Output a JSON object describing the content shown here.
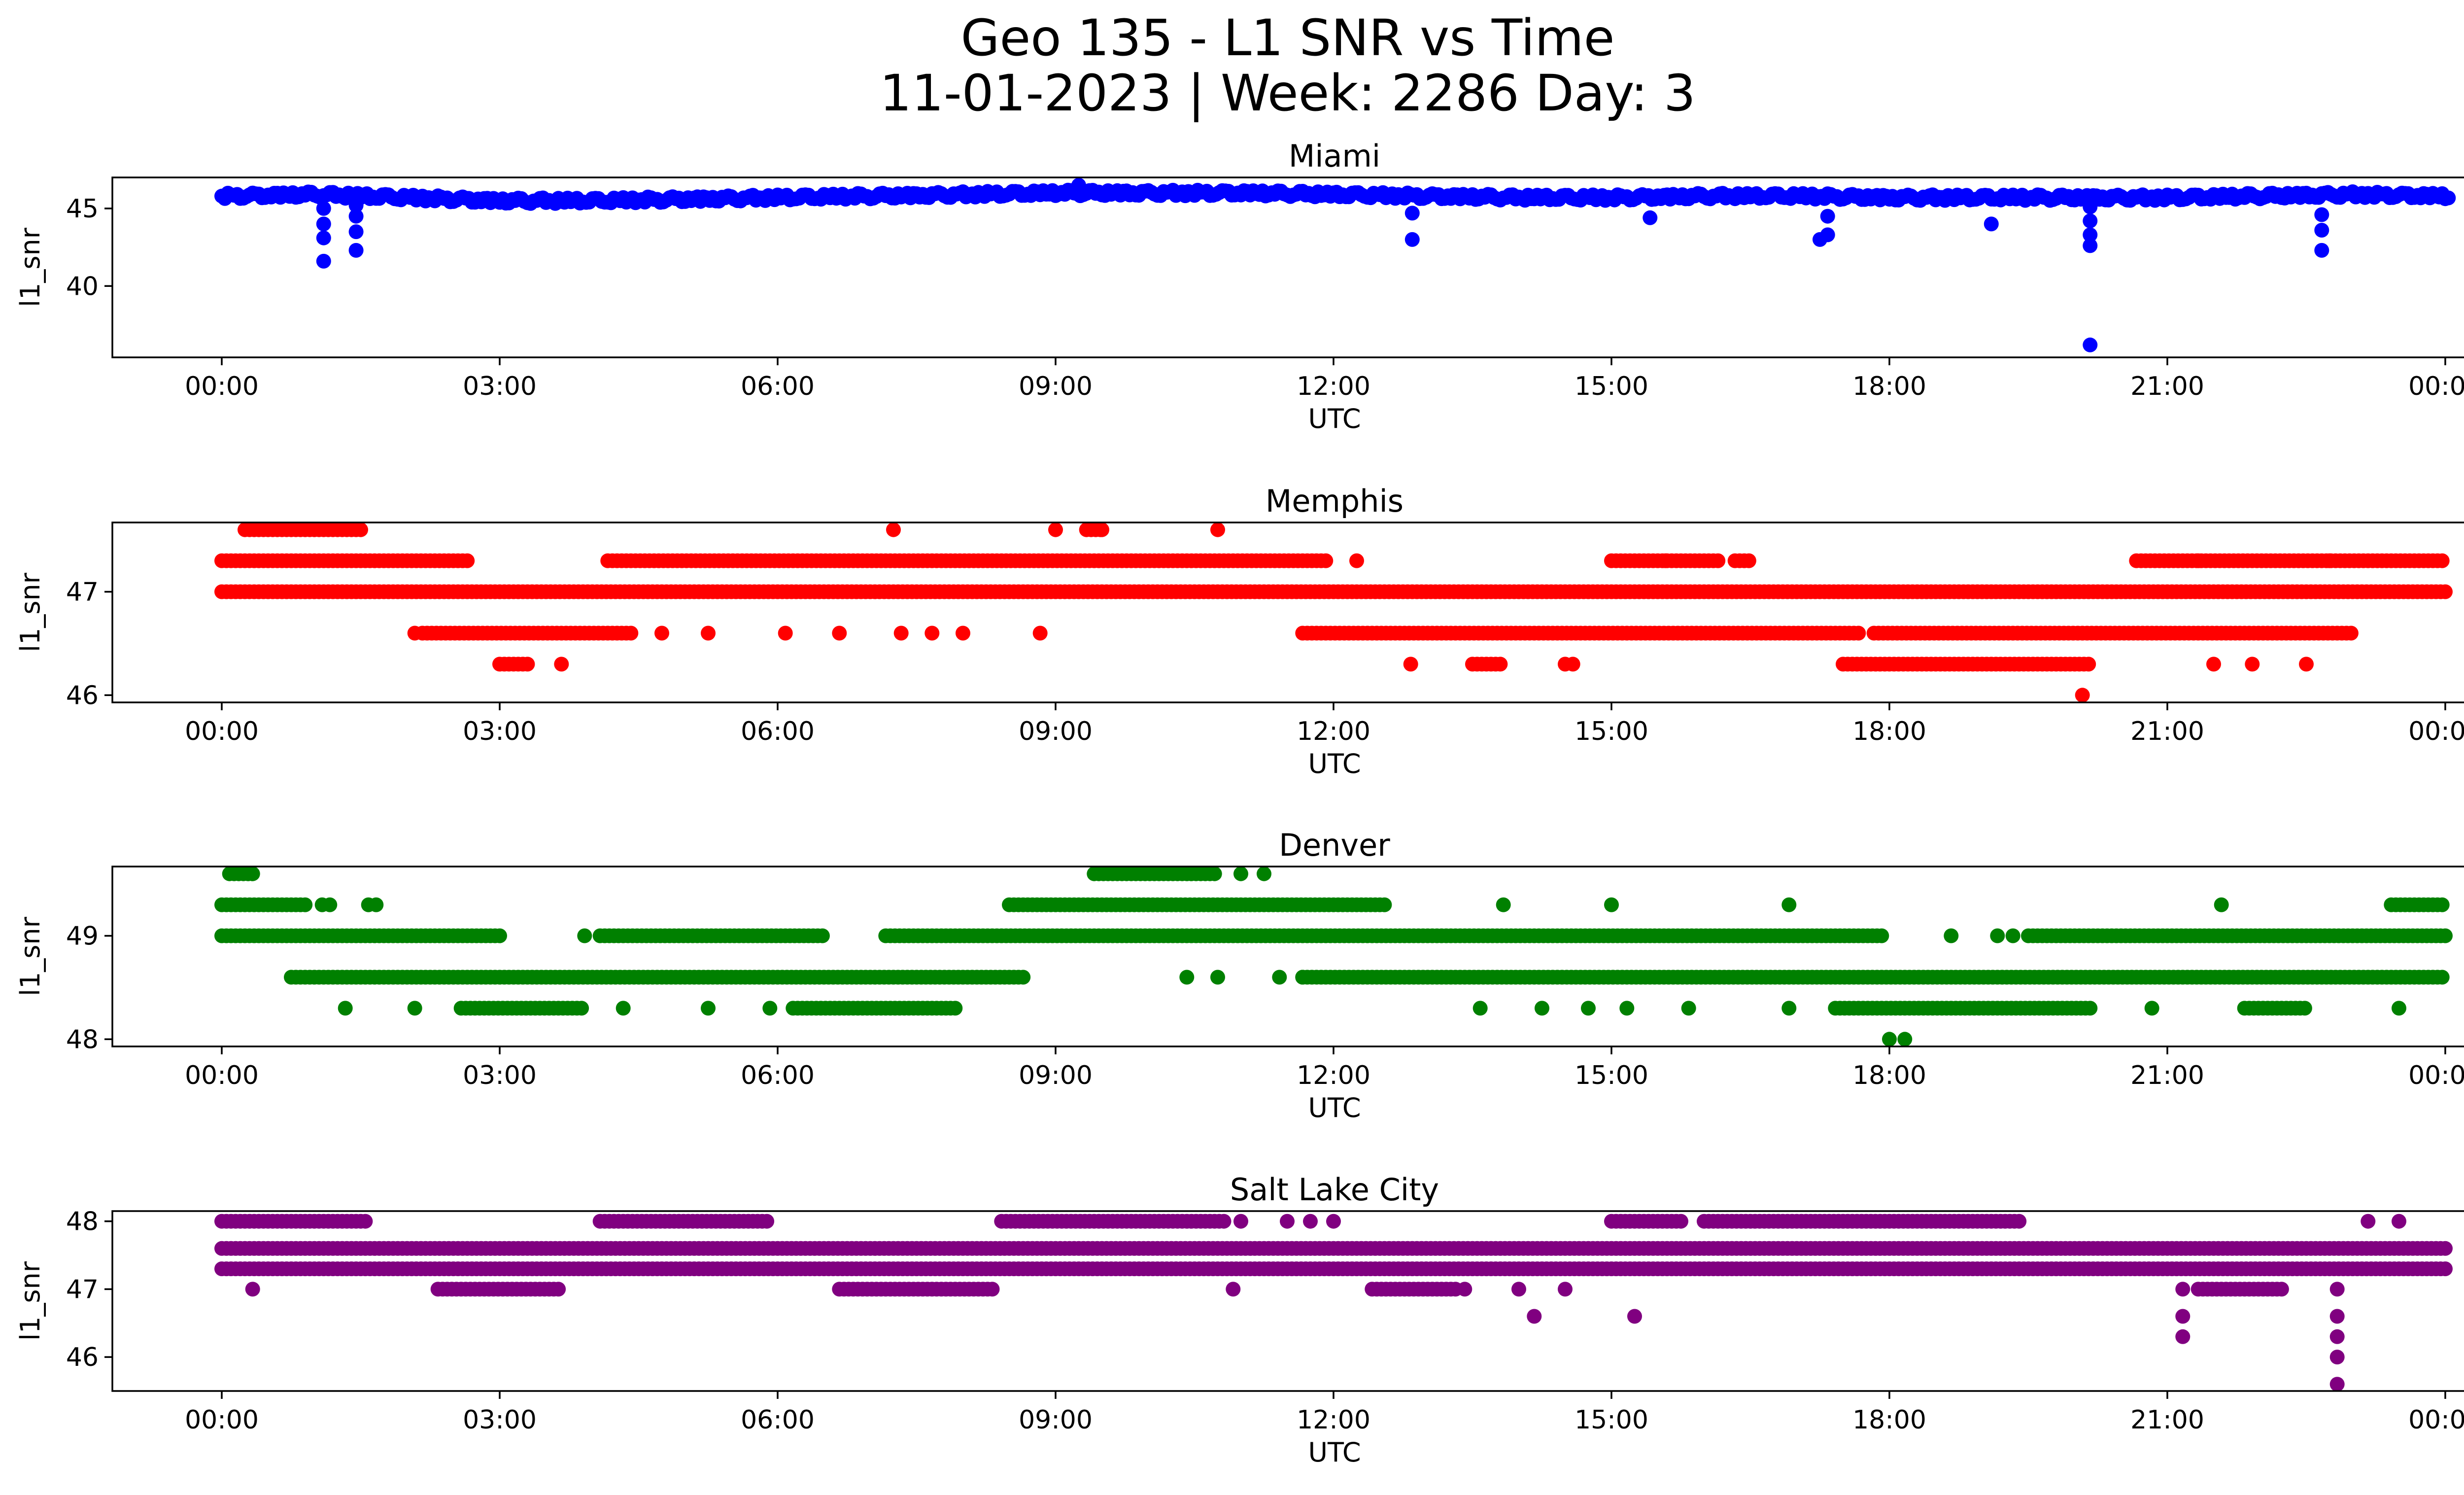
{
  "figure": {
    "title_line1": "Geo 135 - L1 SNR vs Time",
    "title_line2": "11-01-2023 | Week: 2286 Day: 3"
  },
  "chart_data": [
    {
      "type": "scatter",
      "title": "Miami",
      "xlabel": "UTC",
      "ylabel": "l1_snr",
      "color": "#0000ff",
      "xlim": [
        "2023-11-01T00:00",
        "2023-11-02T00:00"
      ],
      "ylim": [
        35.4,
        47.0
      ],
      "yticks": [
        40,
        45
      ],
      "xtick_labels": [
        "00:00",
        "03:00",
        "06:00",
        "09:00",
        "12:00",
        "15:00",
        "18:00",
        "21:00",
        "00:00"
      ],
      "baseline": [
        [
          "00:00",
          45.8
        ],
        [
          "01:00",
          45.9
        ],
        [
          "02:00",
          45.7
        ],
        [
          "03:00",
          45.5
        ],
        [
          "04:00",
          45.5
        ],
        [
          "05:00",
          45.6
        ],
        [
          "06:00",
          45.7
        ],
        [
          "07:00",
          45.8
        ],
        [
          "08:00",
          45.9
        ],
        [
          "09:00",
          46.0
        ],
        [
          "10:00",
          46.0
        ],
        [
          "11:00",
          46.0
        ],
        [
          "12:00",
          45.9
        ],
        [
          "13:00",
          45.8
        ],
        [
          "14:00",
          45.7
        ],
        [
          "15:00",
          45.7
        ],
        [
          "16:00",
          45.8
        ],
        [
          "17:00",
          45.8
        ],
        [
          "18:00",
          45.7
        ],
        [
          "19:00",
          45.7
        ],
        [
          "20:00",
          45.7
        ],
        [
          "21:00",
          45.7
        ],
        [
          "22:00",
          45.8
        ],
        [
          "23:00",
          45.9
        ],
        [
          "24:00",
          45.8
        ]
      ],
      "outliers": [
        [
          "01:06",
          41.6
        ],
        [
          "01:06",
          43.1
        ],
        [
          "01:06",
          44.0
        ],
        [
          "01:06",
          45.0
        ],
        [
          "01:27",
          42.3
        ],
        [
          "01:27",
          43.5
        ],
        [
          "01:27",
          44.5
        ],
        [
          "01:27",
          45.2
        ],
        [
          "09:15",
          46.5
        ],
        [
          "12:51",
          43.0
        ],
        [
          "12:51",
          44.7
        ],
        [
          "15:25",
          44.4
        ],
        [
          "17:15",
          43.0
        ],
        [
          "17:20",
          43.3
        ],
        [
          "17:20",
          44.5
        ],
        [
          "19:06",
          44.0
        ],
        [
          "20:10",
          36.2
        ],
        [
          "20:10",
          42.6
        ],
        [
          "20:10",
          43.3
        ],
        [
          "20:10",
          44.2
        ],
        [
          "20:10",
          45.1
        ],
        [
          "22:40",
          42.3
        ],
        [
          "22:40",
          43.6
        ],
        [
          "22:40",
          44.6
        ]
      ]
    },
    {
      "type": "scatter",
      "title": "Memphis",
      "xlabel": "UTC",
      "ylabel": "l1_snr",
      "color": "#ff0000",
      "xlim": [
        "2023-11-01T00:00",
        "2023-11-02T00:00"
      ],
      "ylim": [
        45.93,
        47.67
      ],
      "yticks": [
        46,
        47
      ],
      "xtick_labels": [
        "00:00",
        "03:00",
        "06:00",
        "09:00",
        "12:00",
        "15:00",
        "18:00",
        "21:00",
        "00:00"
      ],
      "bands": [
        {
          "y": 47.0,
          "ranges": [
            [
              "00:00",
              "24:00"
            ]
          ]
        },
        {
          "y": 47.3,
          "ranges": [
            [
              "00:00",
              "02:40"
            ],
            [
              "04:10",
              "11:55"
            ],
            [
              "15:00",
              "16:10"
            ],
            [
              "16:20",
              "16:30"
            ],
            [
              "20:40",
              "24:00"
            ]
          ]
        },
        {
          "y": 47.6,
          "ranges": [
            [
              "00:15",
              "01:30"
            ],
            [
              "09:20",
              "09:30"
            ]
          ]
        },
        {
          "y": 46.6,
          "ranges": [
            [
              "02:10",
              "04:25"
            ],
            [
              "11:40",
              "17:40"
            ],
            [
              "17:50",
              "23:00"
            ]
          ]
        },
        {
          "y": 46.3,
          "ranges": [
            [
              "03:00",
              "03:20"
            ],
            [
              "13:30",
              "13:50"
            ],
            [
              "17:30",
              "20:10"
            ]
          ]
        }
      ],
      "points": [
        [
          "07:15",
          47.6
        ],
        [
          "09:00",
          47.6
        ],
        [
          "09:30",
          47.6
        ],
        [
          "10:45",
          47.6
        ],
        [
          "12:15",
          47.3
        ],
        [
          "15:35",
          47.3
        ],
        [
          "21:20",
          47.3
        ],
        [
          "22:45",
          47.3
        ],
        [
          "02:05",
          46.6
        ],
        [
          "04:45",
          46.6
        ],
        [
          "05:15",
          46.6
        ],
        [
          "06:05",
          46.6
        ],
        [
          "06:40",
          46.6
        ],
        [
          "07:20",
          46.6
        ],
        [
          "07:40",
          46.6
        ],
        [
          "08:00",
          46.6
        ],
        [
          "08:50",
          46.6
        ],
        [
          "03:40",
          46.3
        ],
        [
          "12:50",
          46.3
        ],
        [
          "14:30",
          46.3
        ],
        [
          "14:35",
          46.3
        ],
        [
          "21:30",
          46.3
        ],
        [
          "21:55",
          46.3
        ],
        [
          "22:30",
          46.3
        ],
        [
          "20:05",
          46.0
        ]
      ]
    },
    {
      "type": "scatter",
      "title": "Denver",
      "xlabel": "UTC",
      "ylabel": "l1_snr",
      "color": "#008000",
      "xlim": [
        "2023-11-01T00:00",
        "2023-11-02T00:00"
      ],
      "ylim": [
        47.93,
        49.67
      ],
      "yticks": [
        48,
        49
      ],
      "xtick_labels": [
        "00:00",
        "03:00",
        "06:00",
        "09:00",
        "12:00",
        "15:00",
        "18:00",
        "21:00",
        "00:00"
      ],
      "bands": [
        {
          "y": 49.0,
          "ranges": [
            [
              "00:00",
              "03:00"
            ],
            [
              "04:05",
              "06:30"
            ],
            [
              "07:10",
              "17:55"
            ],
            [
              "19:30",
              "24:00"
            ]
          ]
        },
        {
          "y": 49.3,
          "ranges": [
            [
              "00:00",
              "00:55"
            ],
            [
              "08:30",
              "12:35"
            ],
            [
              "23:25",
              "24:00"
            ]
          ]
        },
        {
          "y": 49.6,
          "ranges": [
            [
              "00:05",
              "00:20"
            ],
            [
              "09:25",
              "10:45"
            ]
          ]
        },
        {
          "y": 48.6,
          "ranges": [
            [
              "00:45",
              "08:40"
            ],
            [
              "11:40",
              "24:00"
            ]
          ]
        },
        {
          "y": 48.3,
          "ranges": [
            [
              "02:35",
              "03:55"
            ],
            [
              "06:10",
              "07:55"
            ],
            [
              "17:25",
              "20:10"
            ],
            [
              "21:50",
              "22:30"
            ]
          ]
        }
      ],
      "points": [
        [
          "01:05",
          49.3
        ],
        [
          "01:10",
          49.3
        ],
        [
          "01:35",
          49.3
        ],
        [
          "01:40",
          49.3
        ],
        [
          "13:50",
          49.3
        ],
        [
          "15:00",
          49.3
        ],
        [
          "16:55",
          49.3
        ],
        [
          "21:35",
          49.3
        ],
        [
          "03:55",
          49.0
        ],
        [
          "18:40",
          49.0
        ],
        [
          "19:10",
          49.0
        ],
        [
          "19:20",
          49.0
        ],
        [
          "11:00",
          49.6
        ],
        [
          "11:15",
          49.6
        ],
        [
          "10:25",
          48.6
        ],
        [
          "10:45",
          48.6
        ],
        [
          "11:25",
          48.6
        ],
        [
          "11:40",
          48.6
        ],
        [
          "01:20",
          48.3
        ],
        [
          "02:05",
          48.3
        ],
        [
          "04:20",
          48.3
        ],
        [
          "05:15",
          48.3
        ],
        [
          "05:55",
          48.3
        ],
        [
          "13:35",
          48.3
        ],
        [
          "14:15",
          48.3
        ],
        [
          "14:45",
          48.3
        ],
        [
          "15:10",
          48.3
        ],
        [
          "15:50",
          48.3
        ],
        [
          "16:55",
          48.3
        ],
        [
          "20:50",
          48.3
        ],
        [
          "23:30",
          48.3
        ],
        [
          "18:00",
          48.0
        ],
        [
          "18:10",
          48.0
        ]
      ]
    },
    {
      "type": "scatter",
      "title": "Salt Lake City",
      "xlabel": "UTC",
      "ylabel": "l1_snr",
      "color": "#800080",
      "xlim": [
        "2023-11-01T00:00",
        "2023-11-02T00:00"
      ],
      "ylim": [
        45.5,
        48.15
      ],
      "yticks": [
        46,
        47,
        48
      ],
      "xtick_labels": [
        "00:00",
        "03:00",
        "06:00",
        "09:00",
        "12:00",
        "15:00",
        "18:00",
        "21:00",
        "00:00"
      ],
      "bands": [
        {
          "y": 47.6,
          "ranges": [
            [
              "00:00",
              "24:00"
            ]
          ]
        },
        {
          "y": 47.3,
          "ranges": [
            [
              "00:00",
              "24:00"
            ]
          ]
        },
        {
          "y": 48.0,
          "ranges": [
            [
              "00:00",
              "01:35"
            ],
            [
              "04:05",
              "05:55"
            ],
            [
              "08:25",
              "10:50"
            ],
            [
              "15:00",
              "15:45"
            ],
            [
              "16:00",
              "19:25"
            ]
          ]
        },
        {
          "y": 47.0,
          "ranges": [
            [
              "02:20",
              "03:40"
            ],
            [
              "06:40",
              "08:20"
            ],
            [
              "12:25",
              "13:20"
            ],
            [
              "21:20",
              "22:15"
            ]
          ]
        }
      ],
      "points": [
        [
          "11:30",
          48.0
        ],
        [
          "11:00",
          48.0
        ],
        [
          "11:45",
          48.0
        ],
        [
          "12:00",
          48.0
        ],
        [
          "23:10",
          48.0
        ],
        [
          "23:30",
          48.0
        ],
        [
          "00:20",
          47.0
        ],
        [
          "10:55",
          47.0
        ],
        [
          "13:25",
          47.0
        ],
        [
          "14:00",
          47.0
        ],
        [
          "14:30",
          47.0
        ],
        [
          "21:10",
          47.0
        ],
        [
          "22:50",
          47.0
        ],
        [
          "14:10",
          46.6
        ],
        [
          "15:15",
          46.6
        ],
        [
          "21:10",
          46.6
        ],
        [
          "21:10",
          46.3
        ],
        [
          "22:50",
          46.6
        ],
        [
          "22:50",
          46.3
        ],
        [
          "22:50",
          46.0
        ],
        [
          "22:50",
          45.6
        ]
      ]
    }
  ]
}
